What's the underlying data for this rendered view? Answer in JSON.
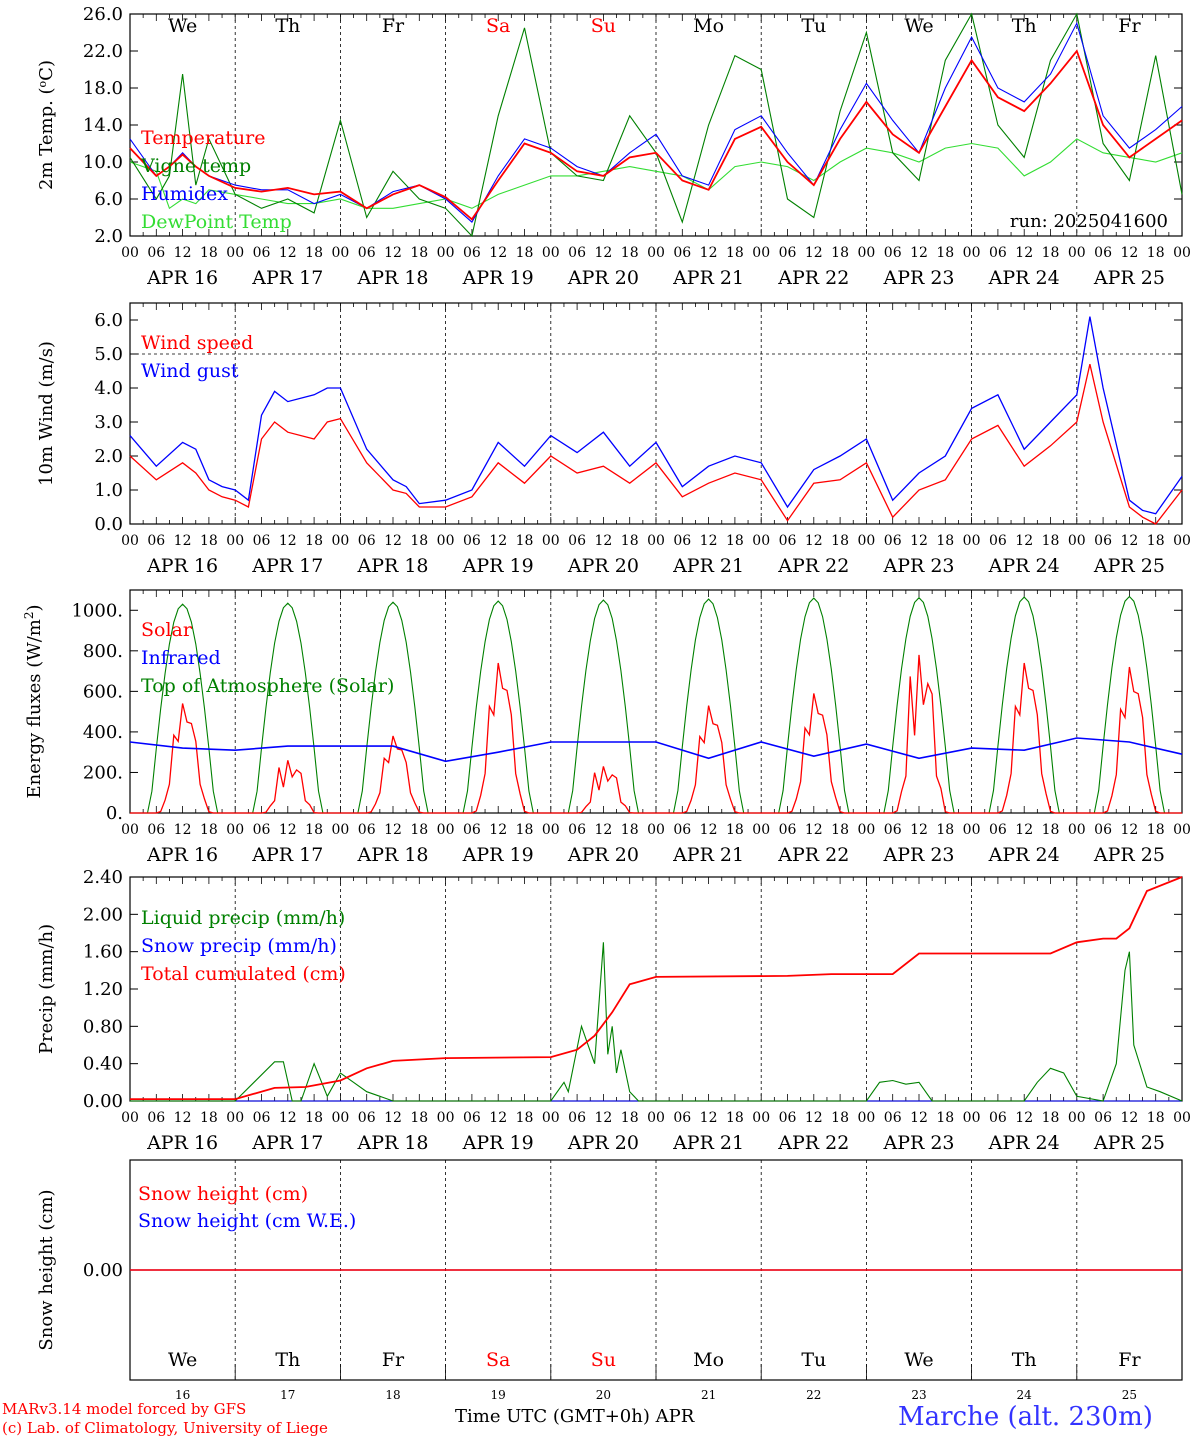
{
  "footer": {
    "credit_line1": "MARv3.14 model forced by GFS",
    "credit_line2": "(c) Lab. of Climatology, University of Liege",
    "xlabel": "Time UTC (GMT+0h)",
    "month": "APR",
    "station": "Marche (alt. 230m)"
  },
  "days": [
    "We",
    "Th",
    "Fr",
    "Sa",
    "Su",
    "Mo",
    "Tu",
    "We",
    "Th",
    "Fr"
  ],
  "weekend_days": [
    "Sa",
    "Su"
  ],
  "date_labels": [
    "APR 16",
    "APR 17",
    "APR 18",
    "APR 19",
    "APR 20",
    "APR 21",
    "APR 22",
    "APR 23",
    "APR 24",
    "APR 25"
  ],
  "day_numbers": [
    "16",
    "17",
    "18",
    "19",
    "20",
    "21",
    "22",
    "23",
    "24",
    "25"
  ],
  "hour_ticks": [
    "00",
    "06",
    "12",
    "18"
  ],
  "colors": {
    "red": "#ff0000",
    "green": "#008000",
    "blue": "#0000ff",
    "light_green": "#33dd33",
    "station_blue": "#3333ff"
  },
  "chart_data": [
    {
      "type": "line",
      "ylabel": "2m Temp. (oC)",
      "ylim": [
        2.0,
        26.0
      ],
      "yticks": [
        "2.0",
        "6.0",
        "10.0",
        "14.0",
        "18.0",
        "22.0",
        "26.0"
      ],
      "run": "run: 2025041600",
      "x_unit": "hours since APR 16 00 UTC",
      "series": [
        {
          "name": "Temperature",
          "color": "#ff0000",
          "x": [
            0,
            6,
            9,
            12,
            15,
            18,
            24,
            30,
            36,
            42,
            48,
            54,
            60,
            66,
            72,
            78,
            84,
            90,
            96,
            102,
            108,
            114,
            120,
            126,
            132,
            138,
            144,
            150,
            156,
            162,
            168,
            174,
            180,
            186,
            192,
            198,
            204,
            210,
            216,
            222,
            228,
            234,
            240
          ],
          "y": [
            11.5,
            8.5,
            9.5,
            10.8,
            9.5,
            8.5,
            7.2,
            6.8,
            7.2,
            6.5,
            6.8,
            5.0,
            6.5,
            7.5,
            6.2,
            3.8,
            8.0,
            12.0,
            11.0,
            9.0,
            8.5,
            10.5,
            11.0,
            8.0,
            7.0,
            12.5,
            13.8,
            10.0,
            7.5,
            12.5,
            16.5,
            13.0,
            11.0,
            16.0,
            21.0,
            17.0,
            15.5,
            18.5,
            22.0,
            14.0,
            10.5,
            12.5,
            14.5
          ]
        },
        {
          "name": "Vigne temp",
          "color": "#008000",
          "x": [
            0,
            6,
            9,
            12,
            15,
            18,
            24,
            30,
            36,
            42,
            48,
            54,
            60,
            66,
            72,
            78,
            84,
            90,
            96,
            102,
            108,
            114,
            120,
            126,
            132,
            138,
            144,
            150,
            156,
            162,
            168,
            174,
            180,
            186,
            192,
            198,
            204,
            210,
            216,
            222,
            228,
            234,
            240
          ],
          "y": [
            10.5,
            6.0,
            8.5,
            19.5,
            7.5,
            12.5,
            6.5,
            5.0,
            6.0,
            4.5,
            14.5,
            4.0,
            9.0,
            6.0,
            5.0,
            2.0,
            15.0,
            24.5,
            11.0,
            8.5,
            8.0,
            15.0,
            11.0,
            3.5,
            14.0,
            21.5,
            20.0,
            6.0,
            4.0,
            15.5,
            24.0,
            11.0,
            8.0,
            21.0,
            27.0,
            14.0,
            10.5,
            21.0,
            28.0,
            12.0,
            8.0,
            21.5,
            6.5
          ]
        },
        {
          "name": "Humidex",
          "color": "#0000ff",
          "x": [
            0,
            6,
            9,
            12,
            15,
            18,
            24,
            30,
            36,
            42,
            48,
            54,
            60,
            66,
            72,
            78,
            84,
            90,
            96,
            102,
            108,
            114,
            120,
            126,
            132,
            138,
            144,
            150,
            156,
            162,
            168,
            174,
            180,
            186,
            192,
            198,
            204,
            210,
            216,
            222,
            228,
            234,
            240
          ],
          "y": [
            12.5,
            8.5,
            9.5,
            11.0,
            9.5,
            8.5,
            7.5,
            7.0,
            7.0,
            5.5,
            6.5,
            5.0,
            6.8,
            7.5,
            6.0,
            3.5,
            8.5,
            12.5,
            11.5,
            9.5,
            8.5,
            11.0,
            13.0,
            8.5,
            7.5,
            13.5,
            15.0,
            11.0,
            7.5,
            13.5,
            18.5,
            14.5,
            11.0,
            18.0,
            23.5,
            18.0,
            16.5,
            19.5,
            25.0,
            15.0,
            11.5,
            13.5,
            16.0
          ]
        },
        {
          "name": "DewPoint Temp",
          "color": "#33dd33",
          "x": [
            0,
            6,
            9,
            12,
            15,
            18,
            24,
            30,
            36,
            42,
            48,
            54,
            60,
            66,
            72,
            78,
            84,
            90,
            96,
            102,
            108,
            114,
            120,
            126,
            132,
            138,
            144,
            150,
            156,
            162,
            168,
            174,
            180,
            186,
            192,
            198,
            204,
            210,
            216,
            222,
            228,
            234,
            240
          ],
          "y": [
            10.0,
            9.0,
            5.0,
            6.0,
            5.5,
            7.0,
            6.5,
            6.0,
            5.5,
            5.5,
            6.0,
            5.0,
            5.0,
            5.5,
            6.0,
            5.0,
            6.5,
            7.5,
            8.5,
            8.5,
            9.0,
            9.5,
            9.0,
            8.5,
            7.0,
            9.5,
            10.0,
            9.5,
            8.0,
            10.0,
            11.5,
            11.0,
            10.0,
            11.5,
            12.0,
            11.5,
            8.5,
            10.0,
            12.5,
            11.0,
            10.5,
            10.0,
            11.0
          ]
        }
      ]
    },
    {
      "type": "line",
      "ylabel": "10m Wind (m/s)",
      "ylim": [
        0.0,
        6.5
      ],
      "yticks": [
        "0.0",
        "1.0",
        "2.0",
        "3.0",
        "4.0",
        "5.0",
        "6.0"
      ],
      "reference_line": 5.0,
      "series": [
        {
          "name": "Wind speed",
          "color": "#ff0000",
          "x": [
            0,
            6,
            12,
            15,
            18,
            21,
            24,
            27,
            30,
            33,
            36,
            42,
            45,
            48,
            54,
            60,
            63,
            66,
            72,
            78,
            84,
            90,
            96,
            102,
            108,
            114,
            120,
            126,
            132,
            138,
            144,
            150,
            156,
            162,
            168,
            174,
            180,
            186,
            192,
            198,
            204,
            210,
            216,
            219,
            222,
            228,
            231,
            234,
            240
          ],
          "y": [
            2.0,
            1.3,
            1.8,
            1.5,
            1.0,
            0.8,
            0.7,
            0.5,
            2.5,
            3.0,
            2.7,
            2.5,
            3.0,
            3.1,
            1.8,
            1.0,
            0.9,
            0.5,
            0.5,
            0.8,
            1.8,
            1.2,
            2.0,
            1.5,
            1.7,
            1.2,
            1.8,
            0.8,
            1.2,
            1.5,
            1.3,
            0.1,
            1.2,
            1.3,
            1.8,
            0.2,
            1.0,
            1.3,
            2.5,
            2.9,
            1.7,
            2.3,
            3.0,
            4.7,
            3.0,
            0.5,
            0.2,
            0.0,
            1.0
          ]
        },
        {
          "name": "Wind gust",
          "color": "#0000ff",
          "x": [
            0,
            6,
            12,
            15,
            18,
            21,
            24,
            27,
            30,
            33,
            36,
            42,
            45,
            48,
            54,
            60,
            63,
            66,
            72,
            78,
            84,
            90,
            96,
            102,
            108,
            114,
            120,
            126,
            132,
            138,
            144,
            150,
            156,
            162,
            168,
            174,
            180,
            186,
            192,
            198,
            204,
            210,
            216,
            219,
            222,
            228,
            231,
            234,
            240
          ],
          "y": [
            2.6,
            1.7,
            2.4,
            2.2,
            1.3,
            1.1,
            1.0,
            0.7,
            3.2,
            3.9,
            3.6,
            3.8,
            4.0,
            4.0,
            2.2,
            1.3,
            1.1,
            0.6,
            0.7,
            1.0,
            2.4,
            1.7,
            2.6,
            2.1,
            2.7,
            1.7,
            2.4,
            1.1,
            1.7,
            2.0,
            1.8,
            0.5,
            1.6,
            2.0,
            2.5,
            0.7,
            1.5,
            2.0,
            3.4,
            3.8,
            2.2,
            3.0,
            3.8,
            6.1,
            4.0,
            0.7,
            0.4,
            0.3,
            1.4
          ]
        }
      ]
    },
    {
      "type": "line",
      "ylabel": "Energy fluxes (W/m2)",
      "ylim": [
        0,
        1100
      ],
      "yticks": [
        "0.",
        "200.",
        "400.",
        "600.",
        "800.",
        "1000."
      ],
      "series": [
        {
          "name": "Solar",
          "color": "#ff0000",
          "peaks": [
            540,
            260,
            380,
            740,
            230,
            530,
            590,
            780,
            740,
            720
          ]
        },
        {
          "name": "Infrared",
          "color": "#0000ff",
          "x": [
            0,
            12,
            24,
            36,
            48,
            60,
            72,
            84,
            96,
            108,
            120,
            132,
            144,
            156,
            168,
            180,
            192,
            204,
            216,
            228,
            240
          ],
          "y": [
            350,
            320,
            310,
            330,
            330,
            330,
            255,
            300,
            350,
            350,
            350,
            270,
            350,
            280,
            340,
            270,
            320,
            310,
            370,
            350,
            290
          ]
        },
        {
          "name": "Top of Atmosphere (Solar)",
          "color": "#008000",
          "peaks": [
            1030,
            1035,
            1040,
            1045,
            1050,
            1055,
            1060,
            1062,
            1065,
            1068
          ]
        }
      ]
    },
    {
      "type": "line",
      "ylabel": "Precip (mm/h)",
      "ylim": [
        0.0,
        2.4
      ],
      "yticks": [
        "0.00",
        "0.40",
        "0.80",
        "1.20",
        "1.60",
        "2.00",
        "2.40"
      ],
      "series": [
        {
          "name": "Liquid precip (mm/h)",
          "color": "#008000",
          "x": [
            0,
            24,
            33,
            35,
            37,
            39,
            42,
            45,
            48,
            51,
            54,
            57,
            60,
            96,
            99,
            100,
            103,
            106,
            108,
            109,
            110,
            111,
            112,
            114,
            116,
            117,
            118,
            120,
            168,
            171,
            174,
            177,
            180,
            183,
            204,
            207,
            210,
            213,
            216,
            222,
            225,
            227,
            228,
            229,
            232,
            235,
            240
          ],
          "y": [
            0,
            0,
            0.42,
            0.42,
            0.0,
            0.0,
            0.4,
            0.05,
            0.3,
            0.2,
            0.1,
            0.05,
            0.0,
            0.0,
            0.2,
            0.1,
            0.8,
            0.4,
            1.7,
            0.5,
            0.8,
            0.3,
            0.55,
            0.1,
            0.0,
            0.0,
            0.0,
            0.0,
            0.0,
            0.2,
            0.22,
            0.18,
            0.2,
            0.0,
            0.0,
            0.2,
            0.35,
            0.3,
            0.05,
            0.0,
            0.4,
            1.4,
            1.6,
            0.6,
            0.15,
            0.1,
            0.0
          ]
        },
        {
          "name": "Snow precip (mm/h)",
          "color": "#0000ff",
          "x": [
            0,
            240
          ],
          "y": [
            0,
            0
          ]
        },
        {
          "name": "Total cumulated (cm)",
          "color": "#ff0000",
          "x": [
            0,
            24,
            33,
            40,
            48,
            54,
            60,
            72,
            96,
            102,
            106,
            110,
            114,
            120,
            150,
            160,
            174,
            180,
            204,
            210,
            216,
            222,
            225,
            228,
            232,
            240
          ],
          "y": [
            0.02,
            0.02,
            0.14,
            0.15,
            0.22,
            0.35,
            0.43,
            0.46,
            0.47,
            0.55,
            0.7,
            0.95,
            1.25,
            1.33,
            1.34,
            1.36,
            1.36,
            1.58,
            1.58,
            1.58,
            1.7,
            1.74,
            1.74,
            1.85,
            2.25,
            2.4
          ]
        }
      ]
    },
    {
      "type": "line",
      "ylabel": "Snow height (cm)",
      "yticks": [
        "0.00"
      ],
      "series": [
        {
          "name": "Snow height (cm)",
          "color": "#ff0000",
          "x": [
            0,
            240
          ],
          "y": [
            0,
            0
          ]
        },
        {
          "name": "Snow height (cm W.E.)",
          "color": "#0000ff",
          "x": [
            0,
            240
          ],
          "y": [
            0,
            0
          ]
        }
      ]
    }
  ]
}
